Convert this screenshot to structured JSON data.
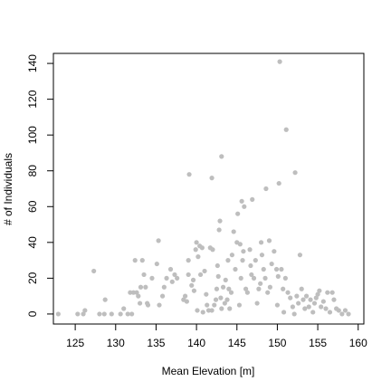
{
  "chart_data": {
    "type": "scatter",
    "title": "",
    "xlabel": "Mean Elevation [m]",
    "ylabel": "# of Individuals",
    "xlim": [
      122.3,
      160.7
    ],
    "ylim": [
      -5.6,
      145.6
    ],
    "xticks": [
      125,
      130,
      135,
      140,
      145,
      150,
      155,
      160
    ],
    "yticks": [
      0,
      20,
      40,
      60,
      80,
      100,
      120,
      140
    ],
    "xtick_labels": [
      "125",
      "130",
      "135",
      "140",
      "145",
      "150",
      "155",
      "160"
    ],
    "ytick_labels": [
      "0",
      "20",
      "40",
      "60",
      "80",
      "100",
      "120",
      "140"
    ],
    "grid": false,
    "legend": "none",
    "point_color": "#bebebe",
    "series": [
      {
        "points": [
          [
            122.9,
            0
          ],
          [
            125.3,
            0
          ],
          [
            126.0,
            0
          ],
          [
            126.2,
            2
          ],
          [
            127.3,
            24
          ],
          [
            128.0,
            0
          ],
          [
            128.6,
            0
          ],
          [
            128.7,
            8
          ],
          [
            129.5,
            0
          ],
          [
            130.6,
            0
          ],
          [
            131.0,
            3
          ],
          [
            131.5,
            0
          ],
          [
            131.8,
            12
          ],
          [
            132.0,
            0
          ],
          [
            132.2,
            12
          ],
          [
            132.4,
            30
          ],
          [
            132.6,
            12
          ],
          [
            132.8,
            10
          ],
          [
            133.0,
            6
          ],
          [
            133.1,
            15
          ],
          [
            133.3,
            30
          ],
          [
            133.5,
            22
          ],
          [
            133.7,
            15
          ],
          [
            133.9,
            6
          ],
          [
            134.0,
            5
          ],
          [
            134.5,
            20
          ],
          [
            135.1,
            28
          ],
          [
            135.3,
            41
          ],
          [
            135.4,
            5
          ],
          [
            135.8,
            10
          ],
          [
            136.0,
            15
          ],
          [
            136.3,
            20
          ],
          [
            136.8,
            25
          ],
          [
            137.0,
            18
          ],
          [
            137.3,
            22
          ],
          [
            137.6,
            20
          ],
          [
            138.4,
            8
          ],
          [
            138.6,
            10
          ],
          [
            138.8,
            7
          ],
          [
            139.0,
            22
          ],
          [
            139.0,
            30
          ],
          [
            139.1,
            78
          ],
          [
            139.4,
            16
          ],
          [
            139.6,
            19
          ],
          [
            139.7,
            13
          ],
          [
            139.9,
            36
          ],
          [
            140.0,
            40
          ],
          [
            140.1,
            2
          ],
          [
            140.2,
            32
          ],
          [
            140.4,
            38
          ],
          [
            140.5,
            22
          ],
          [
            140.7,
            37
          ],
          [
            140.8,
            1
          ],
          [
            141.0,
            24
          ],
          [
            141.2,
            11
          ],
          [
            141.3,
            5
          ],
          [
            141.5,
            2
          ],
          [
            141.7,
            37
          ],
          [
            141.9,
            2
          ],
          [
            141.9,
            76
          ],
          [
            142.0,
            36
          ],
          [
            142.2,
            5
          ],
          [
            142.4,
            8
          ],
          [
            142.5,
            14
          ],
          [
            142.6,
            27
          ],
          [
            142.7,
            21
          ],
          [
            142.8,
            47
          ],
          [
            142.9,
            52
          ],
          [
            143.0,
            9
          ],
          [
            143.1,
            3
          ],
          [
            143.1,
            88
          ],
          [
            143.3,
            15
          ],
          [
            143.5,
            6
          ],
          [
            143.6,
            19
          ],
          [
            143.8,
            8
          ],
          [
            143.9,
            30
          ],
          [
            144.0,
            14
          ],
          [
            144.1,
            3
          ],
          [
            144.3,
            12
          ],
          [
            144.4,
            33
          ],
          [
            144.6,
            46
          ],
          [
            144.8,
            25
          ],
          [
            145.0,
            40
          ],
          [
            145.1,
            56
          ],
          [
            145.3,
            5
          ],
          [
            145.4,
            39
          ],
          [
            145.5,
            20
          ],
          [
            145.6,
            63
          ],
          [
            145.7,
            30
          ],
          [
            145.8,
            35
          ],
          [
            145.9,
            60
          ],
          [
            146.1,
            14
          ],
          [
            146.3,
            12
          ],
          [
            146.6,
            36
          ],
          [
            146.7,
            27
          ],
          [
            146.8,
            22
          ],
          [
            146.9,
            64
          ],
          [
            147.1,
            20
          ],
          [
            147.3,
            30
          ],
          [
            147.5,
            6
          ],
          [
            147.7,
            14
          ],
          [
            147.9,
            17
          ],
          [
            148.0,
            40
          ],
          [
            148.1,
            33
          ],
          [
            148.3,
            25
          ],
          [
            148.5,
            20
          ],
          [
            148.6,
            70
          ],
          [
            148.8,
            12
          ],
          [
            149.0,
            41
          ],
          [
            149.1,
            15
          ],
          [
            149.3,
            28
          ],
          [
            149.6,
            35
          ],
          [
            149.9,
            25
          ],
          [
            150.0,
            5
          ],
          [
            150.1,
            21
          ],
          [
            150.2,
            73
          ],
          [
            150.3,
            141
          ],
          [
            150.5,
            25
          ],
          [
            150.7,
            14
          ],
          [
            150.8,
            1
          ],
          [
            151.0,
            20
          ],
          [
            151.1,
            103
          ],
          [
            151.3,
            12
          ],
          [
            151.6,
            9
          ],
          [
            151.9,
            4
          ],
          [
            152.1,
            0
          ],
          [
            152.2,
            79
          ],
          [
            152.4,
            10
          ],
          [
            152.6,
            6
          ],
          [
            152.8,
            33
          ],
          [
            153.0,
            14
          ],
          [
            153.2,
            8
          ],
          [
            153.4,
            3
          ],
          [
            153.6,
            10
          ],
          [
            153.9,
            4
          ],
          [
            154.1,
            8
          ],
          [
            154.4,
            1
          ],
          [
            154.6,
            6
          ],
          [
            154.8,
            9
          ],
          [
            155.0,
            11
          ],
          [
            155.2,
            13
          ],
          [
            155.4,
            4
          ],
          [
            155.7,
            7
          ],
          [
            156.0,
            3
          ],
          [
            156.2,
            12
          ],
          [
            156.5,
            1
          ],
          [
            156.8,
            12
          ],
          [
            157.0,
            8
          ],
          [
            157.3,
            3
          ],
          [
            157.6,
            2
          ],
          [
            158.0,
            0
          ],
          [
            158.4,
            2
          ],
          [
            158.8,
            0
          ]
        ]
      }
    ]
  }
}
